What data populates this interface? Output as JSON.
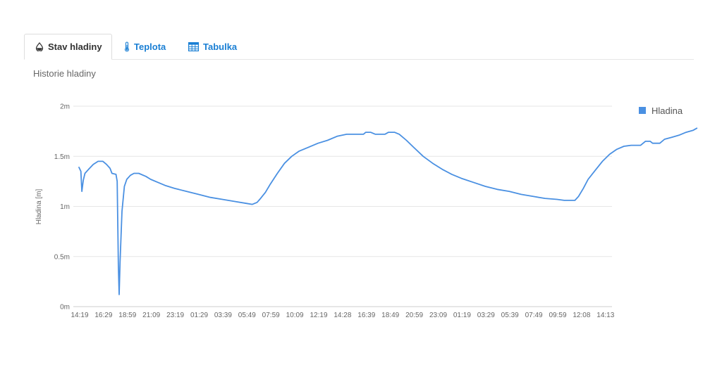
{
  "tabs": [
    {
      "label": "Stav hladiny",
      "icon": "water-drop-icon",
      "active": true
    },
    {
      "label": "Teplota",
      "icon": "thermometer-icon",
      "active": false
    },
    {
      "label": "Tabulka",
      "icon": "table-icon",
      "active": false
    }
  ],
  "colors": {
    "accent": "#1a7fd4",
    "series": "#4a90e2",
    "grid": "#e6e6e6",
    "axis_text": "#666666"
  },
  "chart_data": {
    "type": "line",
    "title": "Historie hladiny",
    "ylabel": "Hladina [m]",
    "xlabel": "",
    "ylim": [
      0,
      2
    ],
    "grid": true,
    "legend_position": "top-right",
    "y_ticks": [
      "0m",
      "0.5m",
      "1m",
      "1.5m",
      "2m"
    ],
    "y_tick_values": [
      0,
      0.5,
      1,
      1.5,
      2
    ],
    "x_ticks": [
      "14:19",
      "16:29",
      "18:59",
      "21:09",
      "23:19",
      "01:29",
      "03:39",
      "05:49",
      "07:59",
      "10:09",
      "12:19",
      "14:28",
      "16:39",
      "18:49",
      "20:59",
      "23:09",
      "01:19",
      "03:29",
      "05:39",
      "07:49",
      "09:59",
      "12:08",
      "14:13"
    ],
    "series": [
      {
        "name": "Hladina",
        "color": "#4a90e2",
        "points": [
          [
            0,
            1.39
          ],
          [
            0.08,
            1.35
          ],
          [
            0.12,
            1.15
          ],
          [
            0.18,
            1.26
          ],
          [
            0.25,
            1.33
          ],
          [
            0.4,
            1.37
          ],
          [
            0.6,
            1.42
          ],
          [
            0.8,
            1.45
          ],
          [
            1.0,
            1.45
          ],
          [
            1.15,
            1.42
          ],
          [
            1.3,
            1.38
          ],
          [
            1.38,
            1.33
          ],
          [
            1.55,
            1.32
          ],
          [
            1.6,
            1.25
          ],
          [
            1.62,
            0.9
          ],
          [
            1.65,
            0.4
          ],
          [
            1.68,
            0.12
          ],
          [
            1.72,
            0.45
          ],
          [
            1.8,
            0.95
          ],
          [
            1.9,
            1.2
          ],
          [
            2.0,
            1.27
          ],
          [
            2.15,
            1.31
          ],
          [
            2.3,
            1.33
          ],
          [
            2.5,
            1.33
          ],
          [
            2.8,
            1.3
          ],
          [
            3.0,
            1.27
          ],
          [
            3.3,
            1.24
          ],
          [
            3.6,
            1.21
          ],
          [
            4.0,
            1.18
          ],
          [
            4.5,
            1.15
          ],
          [
            5.0,
            1.12
          ],
          [
            5.5,
            1.09
          ],
          [
            6.0,
            1.07
          ],
          [
            6.5,
            1.05
          ],
          [
            7.0,
            1.03
          ],
          [
            7.25,
            1.02
          ],
          [
            7.45,
            1.04
          ],
          [
            7.6,
            1.08
          ],
          [
            7.8,
            1.14
          ],
          [
            8.0,
            1.22
          ],
          [
            8.3,
            1.33
          ],
          [
            8.6,
            1.43
          ],
          [
            8.9,
            1.5
          ],
          [
            9.2,
            1.55
          ],
          [
            9.6,
            1.59
          ],
          [
            10.0,
            1.63
          ],
          [
            10.4,
            1.66
          ],
          [
            10.8,
            1.7
          ],
          [
            11.2,
            1.72
          ],
          [
            11.6,
            1.72
          ],
          [
            11.9,
            1.72
          ],
          [
            12.0,
            1.74
          ],
          [
            12.2,
            1.74
          ],
          [
            12.4,
            1.72
          ],
          [
            12.8,
            1.72
          ],
          [
            12.95,
            1.74
          ],
          [
            13.2,
            1.74
          ],
          [
            13.4,
            1.72
          ],
          [
            13.7,
            1.66
          ],
          [
            14.0,
            1.59
          ],
          [
            14.4,
            1.5
          ],
          [
            14.8,
            1.43
          ],
          [
            15.2,
            1.37
          ],
          [
            15.6,
            1.32
          ],
          [
            16.0,
            1.28
          ],
          [
            16.5,
            1.24
          ],
          [
            17.0,
            1.2
          ],
          [
            17.5,
            1.17
          ],
          [
            18.0,
            1.15
          ],
          [
            18.5,
            1.12
          ],
          [
            19.0,
            1.1
          ],
          [
            19.5,
            1.08
          ],
          [
            20.0,
            1.07
          ],
          [
            20.3,
            1.06
          ],
          [
            20.75,
            1.06
          ],
          [
            20.9,
            1.1
          ],
          [
            21.1,
            1.18
          ],
          [
            21.3,
            1.27
          ],
          [
            21.6,
            1.36
          ],
          [
            21.9,
            1.45
          ],
          [
            22.2,
            1.52
          ],
          [
            22.5,
            1.57
          ],
          [
            22.8,
            1.6
          ],
          [
            23.1,
            1.61
          ],
          [
            23.5,
            1.61
          ],
          [
            23.7,
            1.65
          ],
          [
            23.9,
            1.65
          ],
          [
            24.0,
            1.63
          ],
          [
            24.3,
            1.63
          ],
          [
            24.5,
            1.67
          ],
          [
            24.8,
            1.69
          ],
          [
            25.1,
            1.71
          ],
          [
            25.4,
            1.74
          ],
          [
            25.7,
            1.76
          ],
          [
            25.85,
            1.78
          ]
        ]
      }
    ]
  }
}
